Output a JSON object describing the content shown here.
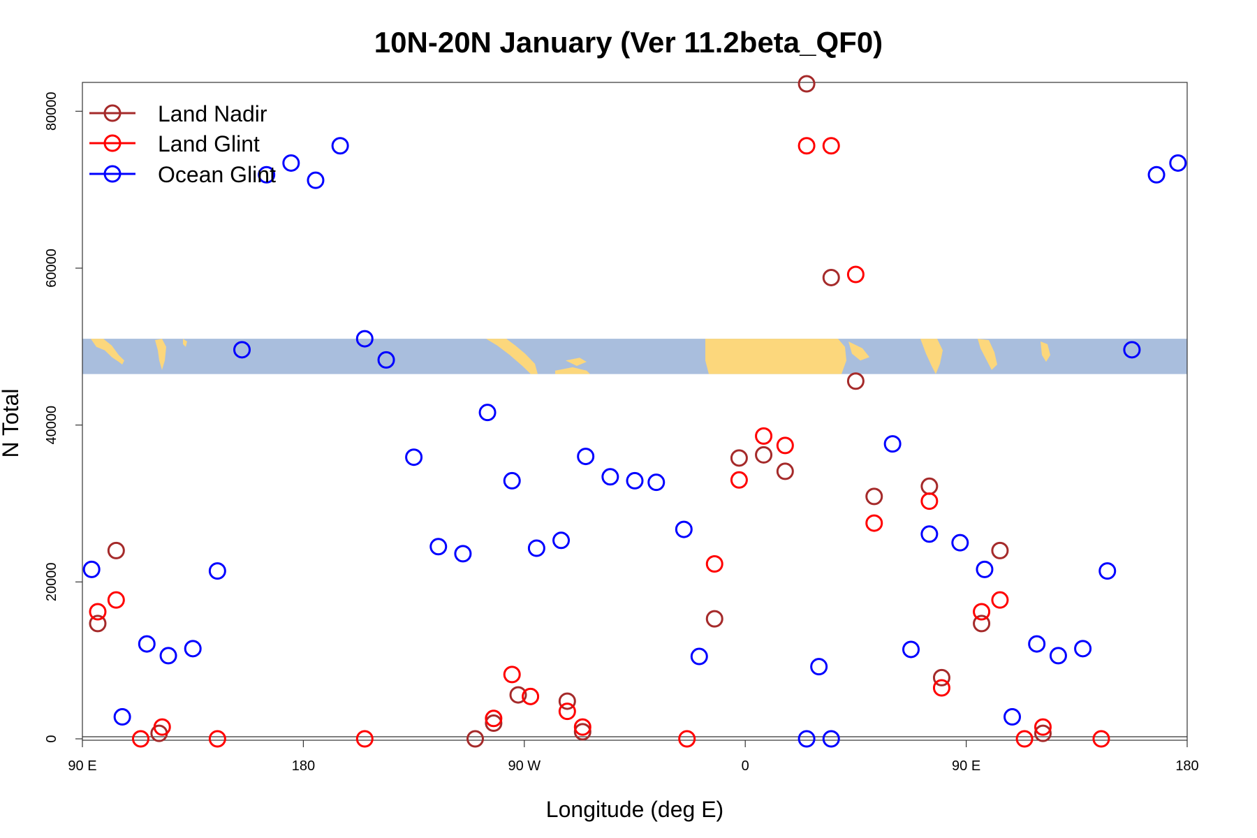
{
  "chart_data": {
    "type": "scatter",
    "title": "10N-20N January (Ver 11.2beta_QF0)",
    "xlabel": "Longitude (deg E)",
    "ylabel": "N Total",
    "xlim": [
      0,
      360
    ],
    "ylim": [
      0,
      83500
    ],
    "x_ticks": [
      {
        "value": 0,
        "label": "90 E"
      },
      {
        "value": 72,
        "label": "180"
      },
      {
        "value": 144,
        "label": "90 W"
      },
      {
        "value": 216,
        "label": "0"
      },
      {
        "value": 288,
        "label": "90 E"
      },
      {
        "value": 360,
        "label": "180"
      }
    ],
    "y_ticks": [
      {
        "value": 0,
        "label": "0"
      },
      {
        "value": 20000,
        "label": "20000"
      },
      {
        "value": 40000,
        "label": "40000"
      },
      {
        "value": 60000,
        "label": "60000"
      },
      {
        "value": 80000,
        "label": "80000"
      }
    ],
    "legend_position": "top-left",
    "map_strip": {
      "y_min": 46500,
      "y_max": 51000,
      "ocean_color": "#a9bedd",
      "land_color": "#fcd77c"
    },
    "series": [
      {
        "name": "Land Nadir",
        "color": "#a52a2a",
        "points": [
          [
            5,
            14700
          ],
          [
            11,
            24000
          ],
          [
            25,
            700
          ],
          [
            128,
            0
          ],
          [
            134,
            2000
          ],
          [
            142,
            5600
          ],
          [
            158,
            4800
          ],
          [
            163,
            900
          ],
          [
            206,
            15300
          ],
          [
            214,
            35800
          ],
          [
            222,
            36200
          ],
          [
            229,
            34100
          ],
          [
            236,
            83500
          ],
          [
            244,
            58800
          ],
          [
            252,
            45600
          ],
          [
            258,
            30900
          ],
          [
            276,
            32200
          ],
          [
            280,
            7800
          ],
          [
            293,
            14700
          ],
          [
            299,
            24000
          ],
          [
            313,
            700
          ]
        ]
      },
      {
        "name": "Land Glint",
        "color": "#ff0000",
        "points": [
          [
            5,
            16200
          ],
          [
            11,
            17700
          ],
          [
            19,
            0
          ],
          [
            26,
            1500
          ],
          [
            44,
            0
          ],
          [
            92,
            0
          ],
          [
            134,
            2600
          ],
          [
            140,
            8200
          ],
          [
            146,
            5400
          ],
          [
            158,
            3500
          ],
          [
            163,
            1500
          ],
          [
            197,
            0
          ],
          [
            206,
            22300
          ],
          [
            214,
            33000
          ],
          [
            222,
            38600
          ],
          [
            229,
            37400
          ],
          [
            236,
            75600
          ],
          [
            244,
            75600
          ],
          [
            252,
            59200
          ],
          [
            258,
            27500
          ],
          [
            276,
            30300
          ],
          [
            280,
            6500
          ],
          [
            293,
            16200
          ],
          [
            299,
            17700
          ],
          [
            307,
            0
          ],
          [
            313,
            1500
          ],
          [
            332,
            0
          ]
        ]
      },
      {
        "name": "Ocean Glint",
        "color": "#0000ff",
        "points": [
          [
            3,
            21600
          ],
          [
            13,
            2800
          ],
          [
            21,
            12100
          ],
          [
            28,
            10600
          ],
          [
            36,
            11500
          ],
          [
            44,
            21400
          ],
          [
            52,
            49600
          ],
          [
            60,
            71900
          ],
          [
            68,
            73400
          ],
          [
            76,
            71200
          ],
          [
            84,
            75600
          ],
          [
            92,
            51000
          ],
          [
            99,
            48300
          ],
          [
            108,
            35900
          ],
          [
            116,
            24500
          ],
          [
            124,
            23600
          ],
          [
            132,
            41600
          ],
          [
            140,
            32900
          ],
          [
            148,
            24300
          ],
          [
            156,
            25300
          ],
          [
            164,
            36000
          ],
          [
            172,
            33400
          ],
          [
            180,
            32900
          ],
          [
            187,
            32700
          ],
          [
            196,
            26700
          ],
          [
            201,
            10500
          ],
          [
            236,
            0
          ],
          [
            240,
            9200
          ],
          [
            244,
            0
          ],
          [
            264,
            37600
          ],
          [
            270,
            11400
          ],
          [
            276,
            26100
          ],
          [
            286,
            25000
          ],
          [
            294,
            21600
          ],
          [
            303,
            2800
          ],
          [
            311,
            12100
          ],
          [
            318,
            10600
          ],
          [
            326,
            11500
          ],
          [
            334,
            21400
          ],
          [
            342,
            49600
          ],
          [
            350,
            71900
          ],
          [
            357,
            73400
          ]
        ]
      }
    ]
  }
}
